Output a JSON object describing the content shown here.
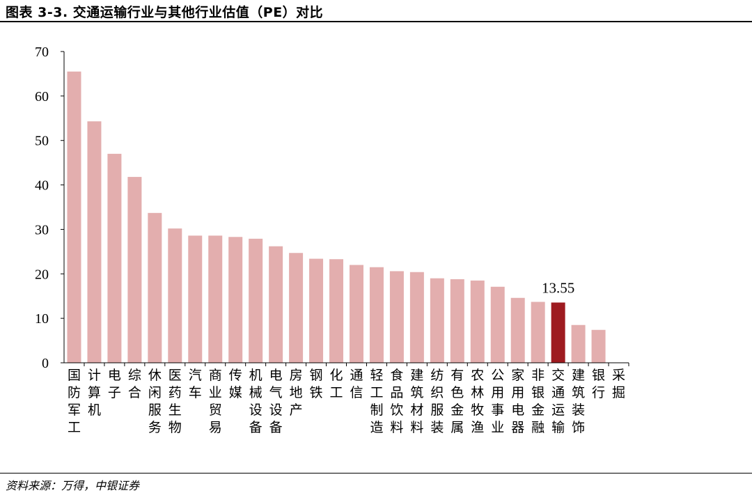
{
  "header": {
    "title": "图表 3-3. 交通运输行业与其他行业估值（PE）对比"
  },
  "footer": {
    "source": "资料来源：万得，中银证券"
  },
  "chart_data": {
    "type": "bar",
    "title": "",
    "xlabel": "",
    "ylabel": "",
    "ylim": [
      0,
      70
    ],
    "yticks": [
      0,
      10,
      20,
      30,
      40,
      50,
      60,
      70
    ],
    "grid": false,
    "legend": "none",
    "bar_color": "#E3AEAE",
    "highlight_color": "#9E1B20",
    "highlight_category": "交通运输",
    "annotation": {
      "category": "交通运输",
      "text": "13.55"
    },
    "categories": [
      "国防军工",
      "计算机",
      "电子",
      "综合",
      "休闲服务",
      "医药生物",
      "汽车",
      "商业贸易",
      "传媒",
      "机械设备",
      "电气设备",
      "房地产",
      "钢铁",
      "化工",
      "通信",
      "轻工制造",
      "食品饮料",
      "建筑材料",
      "纺织服装",
      "有色金属",
      "农林牧渔",
      "公用事业",
      "家用电器",
      "非银金融",
      "交通运输",
      "建筑装饰",
      "银行",
      "采掘"
    ],
    "values": [
      65.5,
      54.3,
      47.0,
      41.8,
      33.7,
      30.2,
      28.6,
      28.6,
      28.3,
      27.9,
      26.2,
      24.7,
      23.4,
      23.3,
      22.0,
      21.5,
      20.6,
      20.4,
      19.0,
      18.8,
      18.5,
      17.1,
      14.6,
      13.7,
      13.55,
      8.5,
      7.4,
      0
    ]
  }
}
